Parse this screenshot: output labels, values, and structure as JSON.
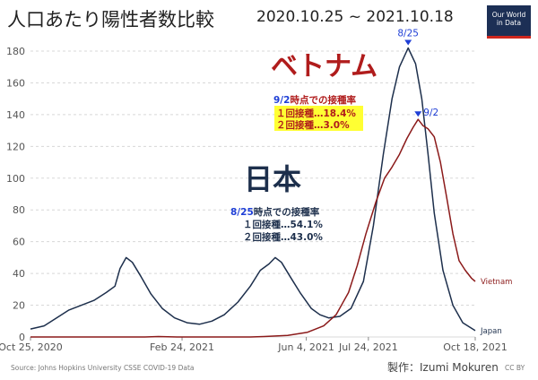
{
  "header": {
    "title": "人口あたり陽性者数比較",
    "date_range": "2020.10.25 ~ 2021.10.18"
  },
  "logo": {
    "line1": "Our World",
    "line2": "in Data"
  },
  "footer": {
    "source": "Source: Johns Hopkins University CSSE COVID-19 Data",
    "credit": "製作：Izumi Mokuren",
    "license": "CC BY"
  },
  "annotations": {
    "vietnam_big": "ベトナム",
    "vietnam_heading_date": "9/2",
    "vietnam_heading_rest": "時点での接種率",
    "vietnam_dose1": "１回接種…18.4%",
    "vietnam_dose2": "２回接種…3.0%",
    "japan_big": "日本",
    "japan_heading_date": "8/25",
    "japan_heading_rest": "時点での接種率",
    "japan_dose1": "１回接種…54.1%",
    "japan_dose2": "２回接種…43.0%",
    "peak_japan": "8/25",
    "peak_vietnam": "9/2"
  },
  "colors": {
    "japan": "#1d2f4c",
    "vietnam": "#8b1a1a",
    "annotation_blue": "#1f3fd6",
    "annotation_red": "#b01c1c",
    "highlight": "#ffff33",
    "grid": "#d8d8d8"
  },
  "chart_data": {
    "type": "line",
    "title": "人口あたり陽性者数比較",
    "subtitle": "2020.10.25 ~ 2021.10.18",
    "xlabel": "",
    "ylabel": "",
    "x_range": [
      "2020-10-25",
      "2021-10-18"
    ],
    "ylim": [
      0,
      180
    ],
    "y_ticks": [
      0,
      20,
      40,
      60,
      80,
      100,
      120,
      140,
      160,
      180
    ],
    "x_tick_labels": [
      "Oct 25, 2020",
      "Feb 24, 2021",
      "Jun 4, 2021",
      "Jul 24, 2021",
      "Oct 18, 2021"
    ],
    "x_ticks": [
      "2020-10-25",
      "2021-02-24",
      "2021-06-04",
      "2021-07-24",
      "2021-10-18"
    ],
    "grid": true,
    "series": [
      {
        "name": "Japan",
        "color": "#1d2f4c",
        "points": [
          [
            "2020-10-25",
            5
          ],
          [
            "2020-11-05",
            7
          ],
          [
            "2020-11-15",
            12
          ],
          [
            "2020-11-25",
            17
          ],
          [
            "2020-12-05",
            20
          ],
          [
            "2020-12-15",
            23
          ],
          [
            "2020-12-25",
            28
          ],
          [
            "2021-01-01",
            32
          ],
          [
            "2021-01-05",
            43
          ],
          [
            "2021-01-10",
            50
          ],
          [
            "2021-01-15",
            47
          ],
          [
            "2021-01-22",
            38
          ],
          [
            "2021-01-30",
            27
          ],
          [
            "2021-02-08",
            18
          ],
          [
            "2021-02-18",
            12
          ],
          [
            "2021-02-28",
            9
          ],
          [
            "2021-03-10",
            8
          ],
          [
            "2021-03-20",
            10
          ],
          [
            "2021-03-30",
            14
          ],
          [
            "2021-04-10",
            22
          ],
          [
            "2021-04-20",
            32
          ],
          [
            "2021-04-28",
            42
          ],
          [
            "2021-05-05",
            46
          ],
          [
            "2021-05-10",
            50
          ],
          [
            "2021-05-15",
            47
          ],
          [
            "2021-05-22",
            38
          ],
          [
            "2021-05-30",
            28
          ],
          [
            "2021-06-08",
            18
          ],
          [
            "2021-06-15",
            14
          ],
          [
            "2021-06-22",
            12
          ],
          [
            "2021-07-01",
            13
          ],
          [
            "2021-07-10",
            18
          ],
          [
            "2021-07-20",
            35
          ],
          [
            "2021-07-28",
            70
          ],
          [
            "2021-08-05",
            115
          ],
          [
            "2021-08-12",
            150
          ],
          [
            "2021-08-18",
            170
          ],
          [
            "2021-08-25",
            182
          ],
          [
            "2021-08-31",
            172
          ],
          [
            "2021-09-05",
            150
          ],
          [
            "2021-09-10",
            115
          ],
          [
            "2021-09-15",
            78
          ],
          [
            "2021-09-22",
            42
          ],
          [
            "2021-09-30",
            20
          ],
          [
            "2021-10-08",
            9
          ],
          [
            "2021-10-18",
            4
          ]
        ]
      },
      {
        "name": "Vietnam",
        "color": "#8b1a1a",
        "points": [
          [
            "2020-10-25",
            0
          ],
          [
            "2021-01-25",
            0
          ],
          [
            "2021-02-05",
            0.3
          ],
          [
            "2021-02-20",
            0
          ],
          [
            "2021-04-20",
            0
          ],
          [
            "2021-05-01",
            0.3
          ],
          [
            "2021-05-20",
            1
          ],
          [
            "2021-06-05",
            3
          ],
          [
            "2021-06-18",
            7
          ],
          [
            "2021-06-28",
            14
          ],
          [
            "2021-07-08",
            28
          ],
          [
            "2021-07-15",
            45
          ],
          [
            "2021-07-22",
            65
          ],
          [
            "2021-07-30",
            85
          ],
          [
            "2021-08-06",
            100
          ],
          [
            "2021-08-12",
            107
          ],
          [
            "2021-08-18",
            115
          ],
          [
            "2021-08-24",
            125
          ],
          [
            "2021-08-29",
            132
          ],
          [
            "2021-09-02",
            137
          ],
          [
            "2021-09-06",
            133
          ],
          [
            "2021-09-10",
            131
          ],
          [
            "2021-09-15",
            126
          ],
          [
            "2021-09-20",
            110
          ],
          [
            "2021-09-25",
            88
          ],
          [
            "2021-09-30",
            65
          ],
          [
            "2021-10-05",
            48
          ],
          [
            "2021-10-10",
            42
          ],
          [
            "2021-10-15",
            37
          ],
          [
            "2021-10-18",
            35
          ]
        ]
      }
    ]
  }
}
